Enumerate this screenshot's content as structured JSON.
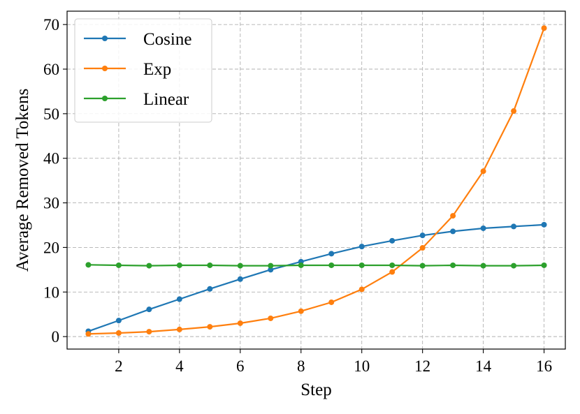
{
  "chart_data": {
    "type": "line",
    "title": "",
    "xlabel": "Step",
    "ylabel": "Average Removed Tokens",
    "xlim": [
      0.3,
      16.7
    ],
    "ylim": [
      -2.8,
      73
    ],
    "x_ticks": [
      2,
      4,
      6,
      8,
      10,
      12,
      14,
      16
    ],
    "x_tick_labels": [
      "2",
      "4",
      "6",
      "8",
      "10",
      "12",
      "14",
      "16"
    ],
    "y_ticks": [
      0,
      10,
      20,
      30,
      40,
      50,
      60,
      70
    ],
    "y_tick_labels": [
      "0",
      "10",
      "20",
      "30",
      "40",
      "50",
      "60",
      "70"
    ],
    "grid": true,
    "legend_position": "upper-left",
    "x": [
      1,
      2,
      3,
      4,
      5,
      6,
      7,
      8,
      9,
      10,
      11,
      12,
      13,
      14,
      15,
      16
    ],
    "series": [
      {
        "name": "Cosine",
        "color": "#1f77b4",
        "values": [
          1.2,
          3.6,
          6.1,
          8.4,
          10.7,
          12.9,
          15.0,
          16.8,
          18.6,
          20.2,
          21.5,
          22.7,
          23.6,
          24.3,
          24.7,
          25.1
        ]
      },
      {
        "name": "Exp",
        "color": "#ff7f0e",
        "values": [
          0.6,
          0.8,
          1.1,
          1.6,
          2.2,
          3.0,
          4.1,
          5.7,
          7.7,
          10.6,
          14.5,
          19.9,
          27.1,
          37.1,
          50.6,
          69.2
        ]
      },
      {
        "name": "Linear",
        "color": "#2ca02c",
        "values": [
          16.1,
          16.0,
          15.9,
          16.0,
          16.0,
          15.9,
          15.9,
          16.0,
          16.0,
          16.0,
          16.0,
          15.9,
          16.0,
          15.9,
          15.9,
          16.0
        ]
      }
    ]
  }
}
